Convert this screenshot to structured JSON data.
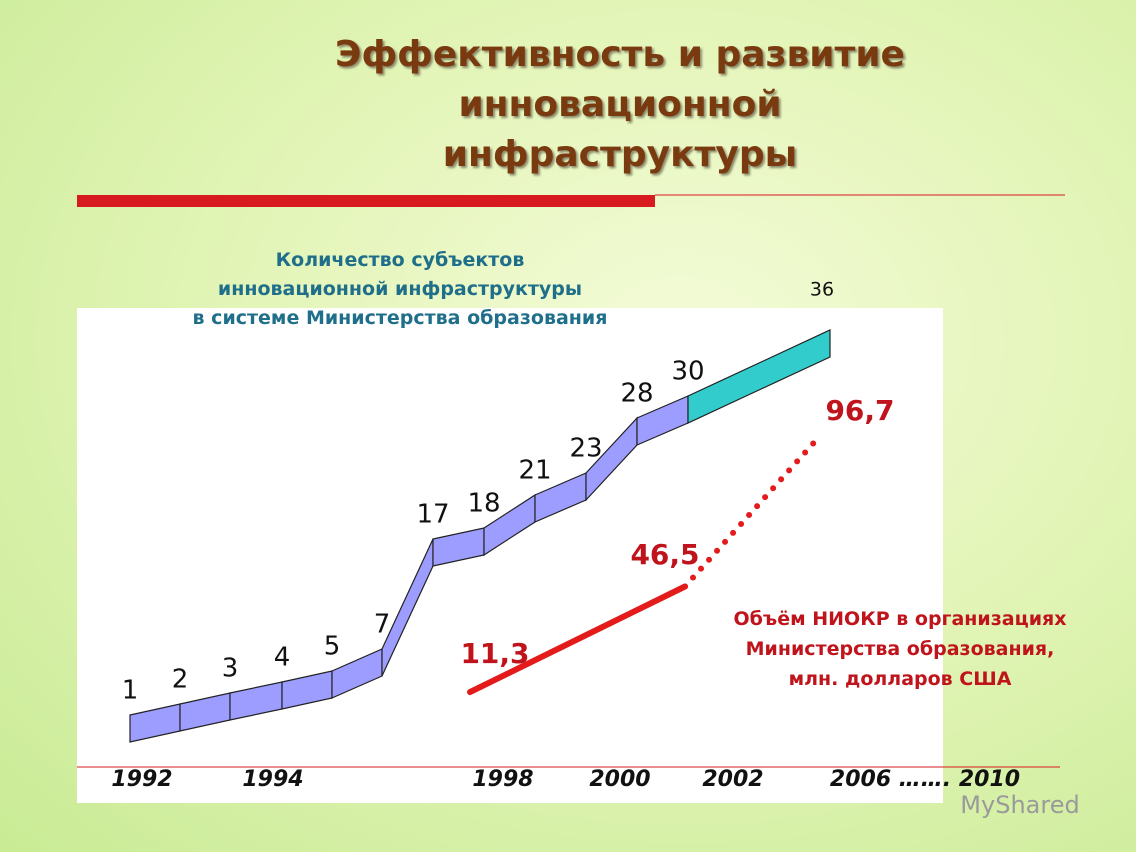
{
  "chart_data": {
    "type": "line",
    "title": "Эффективность и развитие\nинновационной\nинфраструктуры",
    "series": [
      {
        "name": "Количество субъектов\nинновационной инфраструктуры\nв системе Министерства образования",
        "color": "#9d9dff",
        "last_color": "#33cccc",
        "values": [
          1,
          2,
          3,
          4,
          5,
          7,
          17,
          18,
          21,
          23,
          28,
          30,
          36
        ]
      },
      {
        "name": "Объём НИОКР в организациях\nМинистерства образования,\nмлн. долларов США",
        "color": "#e31b1b",
        "values": [
          11.3,
          46.5,
          96.7
        ],
        "value_labels": [
          "11,3",
          "46,5",
          "96,7"
        ]
      }
    ],
    "x_axis_labels": [
      "1992",
      "1994",
      "1998",
      "2000",
      "2002",
      "2006 ……. 2010"
    ],
    "watermark": "MyShared"
  }
}
